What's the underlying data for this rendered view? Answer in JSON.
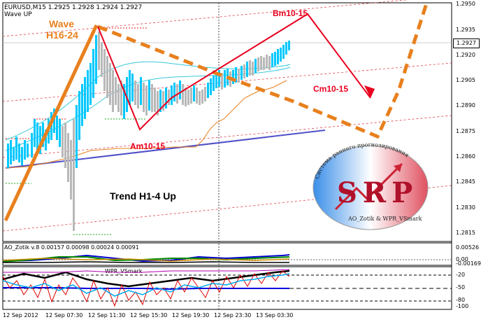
{
  "header": {
    "symbol_line": "EURUSD,M15  1.2925 1.2928 1.2924 1.2927",
    "indicator": "Wave UP"
  },
  "price_axis": [
    "1.2950",
    "1.2935",
    "1.2920",
    "1.2905",
    "1.2890",
    "1.2875",
    "1.2860",
    "1.2845",
    "1.2830",
    "1.2815"
  ],
  "current_price": "1.2927",
  "time_axis": [
    "12 Sep 2012",
    "12 Sep 07:30",
    "12 Sep 11:30",
    "12 Sep 15:30",
    "12 Sep 19:30",
    "12 Sep 23:30",
    "13 Sep 03:30"
  ],
  "annotations": {
    "wave_line1": "Wave",
    "wave_line2": "H16-24",
    "bm": "Bm10-15",
    "cm": "Cm10-15",
    "am": "Am10-15",
    "trend": "Trend H1-4 Up"
  },
  "logo": {
    "letters": "SRP",
    "arc_text": "Система раннего прогнозирования",
    "footer": "AO_Zotik & WPR_VSmark"
  },
  "sub1": {
    "title": "AO_Zotik  v.8  0.00157  0.00098  0.00024  0.00091",
    "scale_top": "0.00526",
    "scale_zero": "0.00",
    "scale_low": "-0.00169"
  },
  "sub2": {
    "title": "WPR_VSmark",
    "scale_top": "-20",
    "scale_mid": "-50",
    "scale_low": "-80",
    "scale_bottom": "-100"
  },
  "colors": {
    "orange": "#e8801e",
    "red": "#e8001e",
    "cyan": "#00b4ff",
    "purple": "#5050c8",
    "grey": "#b8b8b8"
  }
}
